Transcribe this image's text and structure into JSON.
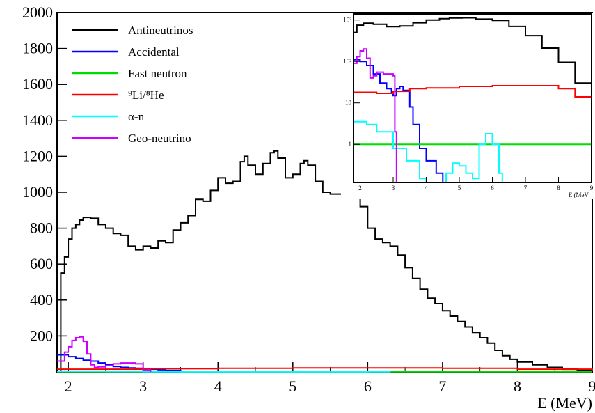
{
  "chart_data": [
    {
      "type": "line",
      "panel": "main",
      "xlabel": "E (MeV)",
      "ylabel": "",
      "xlim": [
        1.85,
        9.0
      ],
      "ylim": [
        0,
        2000
      ],
      "x_ticks": [
        2,
        3,
        4,
        5,
        6,
        7,
        8,
        9
      ],
      "y_ticks": [
        200,
        400,
        600,
        800,
        1000,
        1200,
        1400,
        1600,
        1800,
        2000
      ],
      "legend_position": "top-left",
      "series": [
        {
          "name": "Antineutrinos",
          "color": "#000000",
          "points": [
            [
              1.85,
              0
            ],
            [
              1.9,
              550
            ],
            [
              1.95,
              640
            ],
            [
              2.0,
              740
            ],
            [
              2.05,
              800
            ],
            [
              2.1,
              820
            ],
            [
              2.15,
              845
            ],
            [
              2.2,
              860
            ],
            [
              2.3,
              855
            ],
            [
              2.4,
              820
            ],
            [
              2.5,
              800
            ],
            [
              2.6,
              770
            ],
            [
              2.7,
              760
            ],
            [
              2.8,
              700
            ],
            [
              2.9,
              680
            ],
            [
              3.0,
              700
            ],
            [
              3.1,
              690
            ],
            [
              3.2,
              730
            ],
            [
              3.3,
              720
            ],
            [
              3.4,
              790
            ],
            [
              3.5,
              830
            ],
            [
              3.6,
              870
            ],
            [
              3.7,
              960
            ],
            [
              3.8,
              950
            ],
            [
              3.9,
              1010
            ],
            [
              4.0,
              1080
            ],
            [
              4.1,
              1050
            ],
            [
              4.2,
              1060
            ],
            [
              4.3,
              1170
            ],
            [
              4.35,
              1200
            ],
            [
              4.4,
              1150
            ],
            [
              4.5,
              1100
            ],
            [
              4.6,
              1160
            ],
            [
              4.7,
              1220
            ],
            [
              4.75,
              1230
            ],
            [
              4.8,
              1190
            ],
            [
              4.9,
              1080
            ],
            [
              5.0,
              1100
            ],
            [
              5.1,
              1160
            ],
            [
              5.15,
              1175
            ],
            [
              5.2,
              1150
            ],
            [
              5.3,
              1060
            ],
            [
              5.4,
              1000
            ],
            [
              5.5,
              990
            ],
            [
              5.6,
              990
            ],
            [
              5.7,
              1005
            ],
            [
              5.8,
              980
            ],
            [
              5.9,
              920
            ],
            [
              6.0,
              800
            ],
            [
              6.1,
              740
            ],
            [
              6.2,
              720
            ],
            [
              6.3,
              700
            ],
            [
              6.4,
              650
            ],
            [
              6.5,
              580
            ],
            [
              6.6,
              520
            ],
            [
              6.7,
              460
            ],
            [
              6.8,
              410
            ],
            [
              6.9,
              380
            ],
            [
              7.0,
              340
            ],
            [
              7.1,
              310
            ],
            [
              7.2,
              280
            ],
            [
              7.3,
              250
            ],
            [
              7.4,
              220
            ],
            [
              7.5,
              190
            ],
            [
              7.6,
              160
            ],
            [
              7.7,
              120
            ],
            [
              7.8,
              90
            ],
            [
              7.9,
              70
            ],
            [
              8.0,
              55
            ],
            [
              8.2,
              40
            ],
            [
              8.4,
              25
            ],
            [
              8.6,
              15
            ],
            [
              8.8,
              8
            ],
            [
              9.0,
              5
            ]
          ]
        },
        {
          "name": "Accidental",
          "color": "#0000ff",
          "points": [
            [
              1.85,
              95
            ],
            [
              2.0,
              85
            ],
            [
              2.1,
              75
            ],
            [
              2.2,
              65
            ],
            [
              2.3,
              60
            ],
            [
              2.4,
              50
            ],
            [
              2.5,
              40
            ],
            [
              2.6,
              30
            ],
            [
              2.7,
              25
            ],
            [
              2.8,
              22
            ],
            [
              2.9,
              20
            ],
            [
              3.0,
              18
            ],
            [
              3.1,
              15
            ],
            [
              3.2,
              12
            ],
            [
              3.3,
              8
            ],
            [
              3.5,
              4
            ],
            [
              4.0,
              1
            ],
            [
              4.5,
              0
            ]
          ]
        },
        {
          "name": "Fast neutron",
          "color": "#00dd00",
          "points": [
            [
              1.85,
              1
            ],
            [
              9.0,
              1
            ]
          ]
        },
        {
          "name": "9Li/8He",
          "color": "#ff0000",
          "points": [
            [
              1.85,
              15
            ],
            [
              3.0,
              18
            ],
            [
              4.0,
              20
            ],
            [
              5.0,
              22
            ],
            [
              6.0,
              22
            ],
            [
              7.0,
              20
            ],
            [
              8.0,
              15
            ],
            [
              9.0,
              8
            ]
          ]
        },
        {
          "name": "α-n",
          "color": "#00ffff",
          "points": [
            [
              1.85,
              3
            ],
            [
              2.5,
              2
            ],
            [
              3.0,
              1
            ],
            [
              3.5,
              0.5
            ],
            [
              4.5,
              0.2
            ],
            [
              5.0,
              0.3
            ],
            [
              6.0,
              0.8
            ],
            [
              6.3,
              0
            ]
          ]
        },
        {
          "name": "Geo-neutrino",
          "color": "#cc00ff",
          "points": [
            [
              1.85,
              60
            ],
            [
              1.95,
              110
            ],
            [
              2.0,
              140
            ],
            [
              2.05,
              175
            ],
            [
              2.1,
              190
            ],
            [
              2.15,
              195
            ],
            [
              2.2,
              170
            ],
            [
              2.25,
              100
            ],
            [
              2.3,
              40
            ],
            [
              2.35,
              25
            ],
            [
              2.4,
              28
            ],
            [
              2.5,
              35
            ],
            [
              2.6,
              45
            ],
            [
              2.7,
              50
            ],
            [
              2.8,
              50
            ],
            [
              2.9,
              45
            ],
            [
              3.0,
              10
            ],
            [
              3.1,
              0
            ]
          ]
        }
      ]
    },
    {
      "type": "line",
      "panel": "inset",
      "xlabel": "E (MeV",
      "ylabel": "",
      "xlim": [
        1.8,
        9.0
      ],
      "ylim": [
        0.12,
        1400
      ],
      "y_scale": "log",
      "x_ticks": [
        2,
        3,
        4,
        5,
        6,
        7,
        8,
        9
      ],
      "y_ticks": [
        1,
        10,
        100,
        1000
      ],
      "y_tick_labels": [
        "1",
        "10",
        "10²",
        "10³"
      ],
      "series": [
        {
          "color": "#000000",
          "points": [
            [
              1.8,
              500
            ],
            [
              1.9,
              750
            ],
            [
              2.1,
              840
            ],
            [
              2.4,
              790
            ],
            [
              2.8,
              690
            ],
            [
              3.2,
              720
            ],
            [
              3.6,
              860
            ],
            [
              4.0,
              1000
            ],
            [
              4.4,
              1080
            ],
            [
              4.7,
              1120
            ],
            [
              5.1,
              1130
            ],
            [
              5.5,
              1050
            ],
            [
              6.0,
              980
            ],
            [
              6.5,
              700
            ],
            [
              7.0,
              420
            ],
            [
              7.5,
              210
            ],
            [
              8.0,
              95
            ],
            [
              8.5,
              30
            ],
            [
              9.0,
              6
            ]
          ]
        },
        {
          "color": "#0000ff",
          "points": [
            [
              1.8,
              110
            ],
            [
              2.0,
              100
            ],
            [
              2.2,
              80
            ],
            [
              2.4,
              50
            ],
            [
              2.6,
              30
            ],
            [
              2.8,
              22
            ],
            [
              2.95,
              18
            ],
            [
              3.0,
              15
            ],
            [
              3.1,
              22
            ],
            [
              3.2,
              25
            ],
            [
              3.3,
              20
            ],
            [
              3.5,
              8
            ],
            [
              3.6,
              3
            ],
            [
              3.8,
              0.8
            ],
            [
              4.0,
              0.4
            ],
            [
              4.3,
              0.2
            ],
            [
              4.5,
              0.12
            ]
          ]
        },
        {
          "color": "#00dd00",
          "points": [
            [
              1.8,
              1
            ],
            [
              9.0,
              1
            ]
          ]
        },
        {
          "color": "#ff0000",
          "points": [
            [
              1.8,
              18
            ],
            [
              2.5,
              17
            ],
            [
              3.0,
              19
            ],
            [
              3.5,
              22
            ],
            [
              4.0,
              23
            ],
            [
              5.0,
              25
            ],
            [
              6.0,
              26
            ],
            [
              7.0,
              26
            ],
            [
              8.0,
              22
            ],
            [
              8.5,
              14
            ],
            [
              9.0,
              6
            ]
          ]
        },
        {
          "color": "#00ffff",
          "points": [
            [
              1.8,
              3.5
            ],
            [
              2.2,
              3
            ],
            [
              2.5,
              2
            ],
            [
              3.0,
              0.8
            ],
            [
              3.4,
              0.4
            ],
            [
              3.8,
              0.15
            ],
            [
              4.0,
              0.12
            ],
            [
              4.6,
              0.2
            ],
            [
              4.8,
              0.35
            ],
            [
              5.0,
              0.3
            ],
            [
              5.2,
              0.2
            ],
            [
              5.4,
              0.15
            ],
            [
              5.6,
              1
            ],
            [
              5.8,
              1.8
            ],
            [
              6.0,
              1
            ],
            [
              6.2,
              0.2
            ],
            [
              6.3,
              0.12
            ]
          ]
        },
        {
          "color": "#cc00ff",
          "points": [
            [
              1.8,
              90
            ],
            [
              1.9,
              130
            ],
            [
              2.0,
              180
            ],
            [
              2.1,
              200
            ],
            [
              2.2,
              120
            ],
            [
              2.3,
              40
            ],
            [
              2.4,
              45
            ],
            [
              2.5,
              55
            ],
            [
              2.7,
              50
            ],
            [
              2.9,
              50
            ],
            [
              3.0,
              45
            ],
            [
              3.05,
              2
            ],
            [
              3.1,
              0.12
            ]
          ]
        }
      ]
    }
  ],
  "legend": [
    {
      "label": "Antineutrinos",
      "color": "#000000"
    },
    {
      "label": "Accidental",
      "color": "#0000ff"
    },
    {
      "label": "Fast neutron",
      "color": "#00dd00"
    },
    {
      "label": "⁹Li/⁸He",
      "color": "#ff0000"
    },
    {
      "label": "α-n",
      "color": "#00ffff"
    },
    {
      "label": "Geo-neutrino",
      "color": "#cc00ff"
    }
  ]
}
